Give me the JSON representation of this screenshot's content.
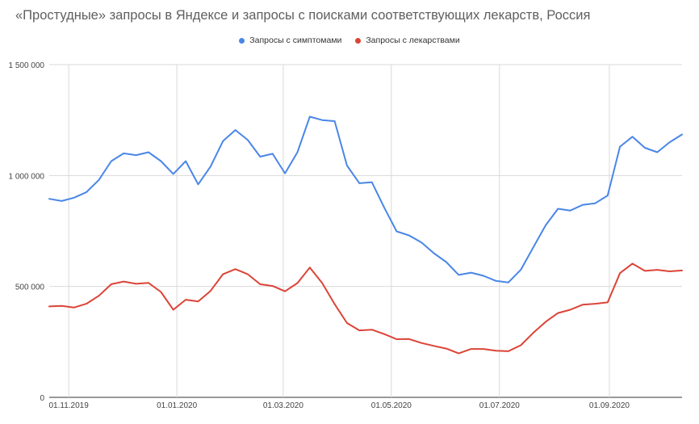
{
  "chart_data": {
    "type": "line",
    "title": "«Простудные» запросы в Яндексе и запросы с поисками соответствующих лекарств, Россия",
    "xlabel": "",
    "ylabel": "",
    "ylim": [
      0,
      1500000
    ],
    "y_ticks": [
      0,
      500000,
      1000000,
      1500000
    ],
    "y_tick_labels": [
      "0",
      "500 000",
      "1 000 000",
      "1 500 000"
    ],
    "x": [
      "2019-10-21",
      "2019-10-28",
      "2019-11-04",
      "2019-11-11",
      "2019-11-18",
      "2019-11-25",
      "2019-12-02",
      "2019-12-09",
      "2019-12-16",
      "2019-12-23",
      "2019-12-30",
      "2020-01-06",
      "2020-01-13",
      "2020-01-20",
      "2020-01-27",
      "2020-02-03",
      "2020-02-10",
      "2020-02-17",
      "2020-02-24",
      "2020-03-02",
      "2020-03-09",
      "2020-03-16",
      "2020-03-23",
      "2020-03-30",
      "2020-04-06",
      "2020-04-13",
      "2020-04-20",
      "2020-04-27",
      "2020-05-04",
      "2020-05-11",
      "2020-05-18",
      "2020-05-25",
      "2020-06-01",
      "2020-06-08",
      "2020-06-15",
      "2020-06-22",
      "2020-06-29",
      "2020-07-06",
      "2020-07-13",
      "2020-07-20",
      "2020-07-27",
      "2020-08-03",
      "2020-08-10",
      "2020-08-17",
      "2020-08-24",
      "2020-08-31",
      "2020-09-07",
      "2020-09-14",
      "2020-09-21",
      "2020-09-28",
      "2020-10-05",
      "2020-10-12"
    ],
    "x_ticks": [
      "2019-11-01",
      "2020-01-01",
      "2020-03-01",
      "2020-05-01",
      "2020-07-01",
      "2020-09-01"
    ],
    "x_tick_labels": [
      "01.11.2019",
      "01.01.2020",
      "01.03.2020",
      "01.05.2020",
      "01.07.2020",
      "01.09.2020"
    ],
    "grid": true,
    "legend_position": "top",
    "series": [
      {
        "name": "Запросы с симптомами",
        "color": "#4a86e8",
        "values": [
          895000,
          885000,
          900000,
          925000,
          980000,
          1065000,
          1100000,
          1092000,
          1105000,
          1065000,
          1007000,
          1065000,
          960000,
          1040000,
          1155000,
          1205000,
          1160000,
          1085000,
          1098000,
          1010000,
          1105000,
          1265000,
          1250000,
          1245000,
          1045000,
          965000,
          970000,
          855000,
          748000,
          730000,
          698000,
          650000,
          610000,
          552000,
          562000,
          548000,
          525000,
          518000,
          575000,
          675000,
          775000,
          850000,
          842000,
          868000,
          875000,
          910000,
          1130000,
          1175000,
          1125000,
          1105000,
          1150000,
          1185000
        ]
      },
      {
        "name": "Запросы с лекарствами",
        "color": "#db4437",
        "values": [
          410000,
          412000,
          405000,
          422000,
          458000,
          510000,
          522000,
          512000,
          516000,
          475000,
          395000,
          440000,
          432000,
          480000,
          555000,
          578000,
          555000,
          510000,
          502000,
          478000,
          515000,
          585000,
          515000,
          420000,
          335000,
          302000,
          305000,
          285000,
          262000,
          263000,
          245000,
          232000,
          220000,
          198000,
          218000,
          218000,
          210000,
          208000,
          235000,
          290000,
          340000,
          380000,
          395000,
          418000,
          422000,
          428000,
          560000,
          603000,
          570000,
          575000,
          568000,
          572000
        ]
      }
    ]
  }
}
